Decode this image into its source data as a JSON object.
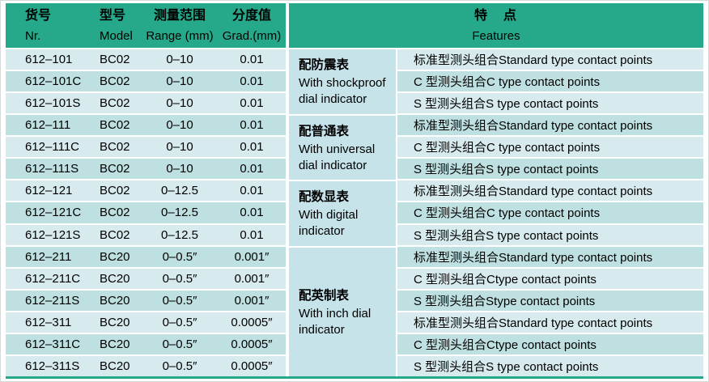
{
  "header": {
    "nr_zh": "货号",
    "nr_en": "Nr.",
    "model_zh": "型号",
    "model_en": "Model",
    "range_zh": "测量范围",
    "range_en": "Range (mm)",
    "grad_zh": "分度值",
    "grad_en": "Grad.(mm)",
    "features_zh": "特　点",
    "features_en": "Features"
  },
  "groups": [
    {
      "zh": "配防震表",
      "en": "With shockproof dial indicator",
      "row_span": 3
    },
    {
      "zh": "配普通表",
      "en": "With universal dial indicator",
      "row_span": 3
    },
    {
      "zh": "配数显表",
      "en": "With digital indicator",
      "row_span": 3
    },
    {
      "zh": "配英制表",
      "en": "With inch dial indicator",
      "row_span": 6
    }
  ],
  "rows": [
    {
      "nr": "612–101",
      "model": "BC02",
      "range": "0–10",
      "grad": "0.01",
      "feature": "标准型测头组合Standard type contact points"
    },
    {
      "nr": "612–101C",
      "model": "BC02",
      "range": "0–10",
      "grad": "0.01",
      "feature": "C 型测头组合C type contact points"
    },
    {
      "nr": "612–101S",
      "model": "BC02",
      "range": "0–10",
      "grad": "0.01",
      "feature": "S 型测头组合S type contact points"
    },
    {
      "nr": "612–111",
      "model": "BC02",
      "range": "0–10",
      "grad": "0.01",
      "feature": "标准型测头组合Standard type contact points"
    },
    {
      "nr": "612–111C",
      "model": "BC02",
      "range": "0–10",
      "grad": "0.01",
      "feature": "C 型测头组合C type contact points"
    },
    {
      "nr": "612–111S",
      "model": "BC02",
      "range": "0–10",
      "grad": "0.01",
      "feature": "S 型测头组合S type contact points"
    },
    {
      "nr": "612–121",
      "model": "BC02",
      "range": "0–12.5",
      "grad": "0.01",
      "feature": "标准型测头组合Standard type contact points"
    },
    {
      "nr": "612–121C",
      "model": "BC02",
      "range": "0–12.5",
      "grad": "0.01",
      "feature": "C 型测头组合C type contact points"
    },
    {
      "nr": "612–121S",
      "model": "BC02",
      "range": "0–12.5",
      "grad": "0.01",
      "feature": "S 型测头组合S type contact points"
    },
    {
      "nr": "612–211",
      "model": "BC20",
      "range": "0–0.5″",
      "grad": "0.001″",
      "feature": "标准型测头组合Standard type contact points"
    },
    {
      "nr": "612–211C",
      "model": "BC20",
      "range": "0–0.5″",
      "grad": "0.001″",
      "feature": "C 型测头组合Ctype contact points"
    },
    {
      "nr": "612–211S",
      "model": "BC20",
      "range": "0–0.5″",
      "grad": "0.001″",
      "feature": "S 型测头组合Stype contact points"
    },
    {
      "nr": "612–311",
      "model": "BC20",
      "range": "0–0.5″",
      "grad": "0.0005″",
      "feature": "标准型测头组合Standard type contact points"
    },
    {
      "nr": "612–311C",
      "model": "BC20",
      "range": "0–0.5″",
      "grad": "0.0005″",
      "feature": "C 型测头组合Ctype contact points"
    },
    {
      "nr": "612–311S",
      "model": "BC20",
      "range": "0–0.5″",
      "grad": "0.0005″",
      "feature": "S 型测头组合S type contact points"
    }
  ],
  "colors": {
    "header_teal": "#26a98a",
    "row_light": "#d7eaee",
    "row_teal": "#bfe0e1",
    "group_bg": "#c5e3e9",
    "bottom_border_teal": "#26a98a",
    "text": "#000000"
  }
}
